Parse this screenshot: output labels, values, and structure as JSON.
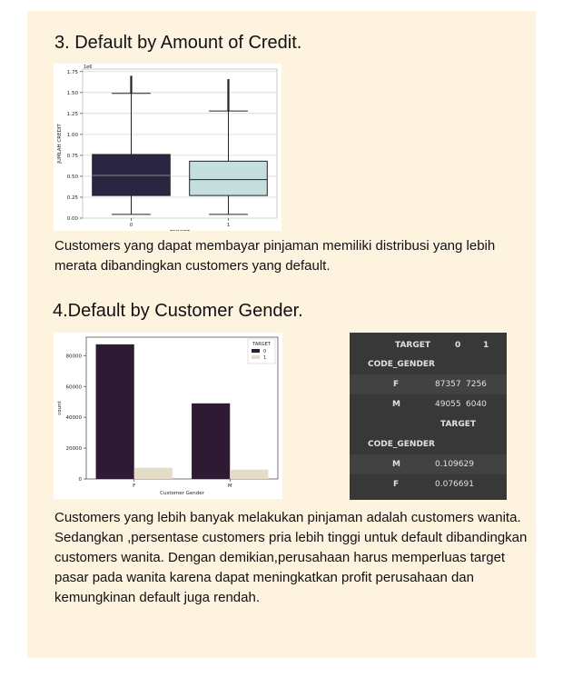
{
  "section3": {
    "heading": "3. Default by Amount of Credit.",
    "paragraph": "Customers yang dapat membayar pinjaman memiliki distribusi yang lebih merata dibandingkan customers yang default."
  },
  "section4": {
    "heading": "4.Default by Customer Gender.",
    "paragraph": "Customers yang lebih banyak melakukan pinjaman adalah customers wanita. Sedangkan ,persentase customers pria lebih tinggi untuk default dibandingkan customers wanita. Dengan demikian,perusahaan harus memperluas target pasar pada wanita karena dapat meningkatkan profit perusahaan dan kemungkinan default juga rendah."
  },
  "chart_data": [
    {
      "type": "box",
      "xlabel": "TARGET",
      "ylabel": "JUMLAH CREDIT",
      "scale_label": "1e6",
      "categories": [
        "0",
        "1"
      ],
      "boxes": [
        {
          "q1": 0.27,
          "median": 0.51,
          "q3": 0.76,
          "whisker_low": 0.045,
          "whisker_high": 1.49,
          "outliers_to": 1.7,
          "color": "#2a2540"
        },
        {
          "q1": 0.27,
          "median": 0.46,
          "q3": 0.68,
          "whisker_low": 0.045,
          "whisker_high": 1.28,
          "outliers_to": 1.66,
          "color": "#c4dfdd"
        }
      ],
      "ylim": [
        0,
        1.78
      ],
      "yticks": [
        "0.00",
        "0.25",
        "0.50",
        "0.75",
        "1.00",
        "1.25",
        "1.50",
        "1.75"
      ],
      "grid": true
    },
    {
      "type": "bar",
      "xlabel": "Customer Gender",
      "ylabel": "count",
      "categories": [
        "F",
        "M"
      ],
      "legend_title": "TARGET",
      "legend_position": "top-right",
      "series": [
        {
          "name": "0",
          "values": [
            87357,
            49055
          ],
          "color": "#2e1a33"
        },
        {
          "name": "1",
          "values": [
            7256,
            6040
          ],
          "color": "#e4dcc7"
        }
      ],
      "ylim": [
        0,
        92000
      ],
      "yticks": [
        "0",
        "20000",
        "40000",
        "60000",
        "80000"
      ],
      "grid": false
    },
    {
      "type": "table",
      "tables": [
        {
          "columns": [
            "TARGET",
            "0",
            "1"
          ],
          "index_name": "CODE_GENDER",
          "rows": [
            {
              "label": "F",
              "values": [
                "87357",
                "7256"
              ]
            },
            {
              "label": "M",
              "values": [
                "49055",
                "6040"
              ]
            }
          ]
        },
        {
          "columns": [
            "TARGET"
          ],
          "index_name": "CODE_GENDER",
          "rows": [
            {
              "label": "M",
              "values": [
                "0.109629"
              ]
            },
            {
              "label": "F",
              "values": [
                "0.076691"
              ]
            }
          ]
        }
      ]
    }
  ]
}
